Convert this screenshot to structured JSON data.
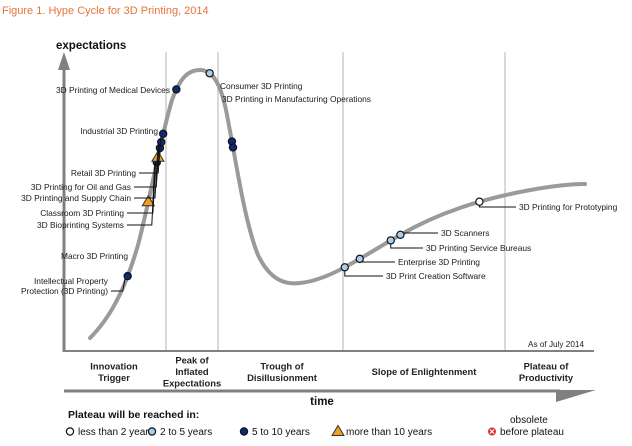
{
  "figure_title": "Figure 1. Hype Cycle for 3D Printing, 2014",
  "chart_data": {
    "type": "line",
    "title": "Hype Cycle for 3D Printing, 2014",
    "ylabel": "expectations",
    "xlabel": "time",
    "as_of": "As of July 2014",
    "colors": {
      "curve": "#9a9a9a",
      "axis": "#808080",
      "divider": "#d9d9d9",
      "less_than_2": "#ffffff",
      "2_to_5": "#a9cdf0",
      "5_to_10": "#0d2a7a",
      "more_than_10": "#f0a020",
      "obsolete": "#e03030",
      "title": "#e8733a"
    },
    "phases": [
      {
        "name": "Innovation Trigger",
        "lines": [
          "Innovation",
          "Trigger"
        ]
      },
      {
        "name": "Peak of Inflated Expectations",
        "lines": [
          "Peak of",
          "Inflated",
          "Expectations"
        ]
      },
      {
        "name": "Trough of Disillusionment",
        "lines": [
          "Trough of",
          "Disillusionment"
        ]
      },
      {
        "name": "Slope of Enlightenment",
        "lines": [
          "Slope of Enlightenment"
        ]
      },
      {
        "name": "Plateau of Productivity",
        "lines": [
          "Plateau of",
          "Productivity"
        ]
      }
    ],
    "technologies": [
      {
        "name": "Intellectual Property Protection (3D Printing)",
        "lines": [
          "Intellectual Property",
          "Protection (3D Printing)"
        ],
        "phase": "Innovation Trigger",
        "position": 0.1,
        "plateau": "5 to 10 years"
      },
      {
        "name": "Macro 3D Printing",
        "lines": [
          "Macro 3D Printing"
        ],
        "phase": "Innovation Trigger",
        "position": 0.2,
        "plateau": "more than 10 years"
      },
      {
        "name": "3D Bioprinting Systems",
        "lines": [
          "3D Bioprinting Systems"
        ],
        "phase": "Innovation Trigger",
        "position": 0.265,
        "plateau": "5 to 10 years"
      },
      {
        "name": "Classroom 3D Printing",
        "lines": [
          "Classroom 3D Printing"
        ],
        "phase": "Innovation Trigger",
        "position": 0.27,
        "plateau": "more than 10 years"
      },
      {
        "name": "3D Printing and Supply Chain",
        "lines": [
          "3D Printing and Supply Chain"
        ],
        "phase": "Innovation Trigger",
        "position": 0.28,
        "plateau": "5 to 10 years"
      },
      {
        "name": "3D Printing for Oil and Gas",
        "lines": [
          "3D Printing for Oil and Gas"
        ],
        "phase": "Innovation Trigger",
        "position": 0.285,
        "plateau": "5 to 10 years"
      },
      {
        "name": "Retail 3D Printing",
        "lines": [
          "Retail 3D Printing"
        ],
        "phase": "Innovation Trigger",
        "position": 0.29,
        "plateau": "5 to 10 years"
      },
      {
        "name": "Industrial 3D Printing",
        "lines": [
          "Industrial 3D Printing"
        ],
        "phase": "Innovation Trigger",
        "position": 0.34,
        "plateau": "5 to 10 years"
      },
      {
        "name": "3D Printing of Medical Devices",
        "lines": [
          "3D Printing of Medical Devices"
        ],
        "phase": "Peak of Inflated Expectations",
        "position": 0.38,
        "plateau": "2 to 5 years"
      },
      {
        "name": "Consumer 3D Printing",
        "lines": [
          "Consumer 3D Printing"
        ],
        "phase": "Peak of Inflated Expectations",
        "position": 0.42,
        "plateau": "5 to 10 years"
      },
      {
        "name": "3D Printing in Manufacturing Operations",
        "lines": [
          "3D Printing in Manufacturing Operations"
        ],
        "phase": "Peak of Inflated Expectations",
        "position": 0.43,
        "plateau": "5 to 10 years"
      },
      {
        "name": "3D Print Creation Software",
        "lines": [
          "3D Print Creation Software"
        ],
        "phase": "Slope of Enlightenment",
        "position": 0.62,
        "plateau": "2 to 5 years"
      },
      {
        "name": "Enterprise 3D Printing",
        "lines": [
          "Enterprise 3D Printing"
        ],
        "phase": "Slope of Enlightenment",
        "position": 0.64,
        "plateau": "2 to 5 years"
      },
      {
        "name": "3D Printing Service Bureaus",
        "lines": [
          "3D Printing Service Bureaus"
        ],
        "phase": "Slope of Enlightenment",
        "position": 0.68,
        "plateau": "2 to 5 years"
      },
      {
        "name": "3D Scanners",
        "lines": [
          "3D Scanners"
        ],
        "phase": "Slope of Enlightenment",
        "position": 0.7,
        "plateau": "2 to 5 years"
      },
      {
        "name": "3D Printing for Prototyping",
        "lines": [
          "3D Printing for Prototyping"
        ],
        "phase": "Plateau of Productivity",
        "position": 0.85,
        "plateau": "less than 2 years"
      }
    ],
    "legend": {
      "title": "Plateau will be reached in:",
      "items": [
        {
          "key": "less_than_2",
          "label": "less than 2 years",
          "marker": "open-circle"
        },
        {
          "key": "2_to_5",
          "label": "2 to 5 years",
          "marker": "light-blue-circle"
        },
        {
          "key": "5_to_10",
          "label": "5 to 10 years",
          "marker": "dark-blue-circle"
        },
        {
          "key": "more_than_10",
          "label": "more than 10 years",
          "marker": "orange-triangle"
        },
        {
          "key": "obsolete",
          "label_lines": [
            "obsolete",
            "before plateau"
          ],
          "marker": "red-x-circle"
        }
      ]
    }
  }
}
